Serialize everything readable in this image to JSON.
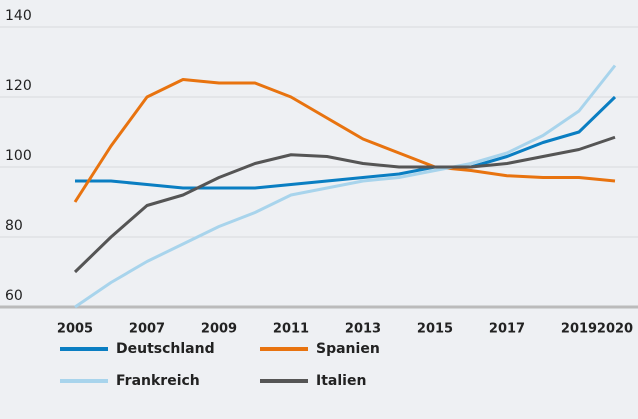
{
  "chart_data": {
    "type": "line",
    "x": [
      2005,
      2006,
      2007,
      2008,
      2009,
      2010,
      2011,
      2012,
      2013,
      2014,
      2015,
      2016,
      2017,
      2018,
      2019,
      2020
    ],
    "series": [
      {
        "name": "Deutschland",
        "color": "#0a7ec2",
        "values": [
          96,
          96,
          95,
          94,
          94,
          94,
          95,
          96,
          97,
          98,
          100,
          100,
          103,
          107,
          110,
          120
        ]
      },
      {
        "name": "Spanien",
        "color": "#e8730f",
        "values": [
          90,
          106,
          120,
          125,
          124,
          124,
          120,
          114,
          108,
          104,
          100,
          99,
          97.5,
          97,
          97,
          96
        ]
      },
      {
        "name": "Frankreich",
        "color": "#a8d4ec",
        "values": [
          60,
          67,
          73,
          78,
          83,
          87,
          92,
          94,
          96,
          97,
          99,
          101,
          104,
          109,
          116,
          129
        ]
      },
      {
        "name": "Italien",
        "color": "#555555",
        "values": [
          70,
          80,
          89,
          92,
          97,
          101,
          103.5,
          103,
          101,
          100,
          100,
          100,
          101,
          103,
          105,
          108.5
        ]
      }
    ],
    "xlim": [
      2005,
      2020
    ],
    "xticks": [
      2005,
      2007,
      2009,
      2011,
      2013,
      2015,
      2017,
      2019,
      2020
    ],
    "ylim": [
      60,
      140
    ],
    "yticks": [
      60,
      80,
      100,
      120,
      140
    ],
    "grid": true,
    "legend": "bottom"
  }
}
